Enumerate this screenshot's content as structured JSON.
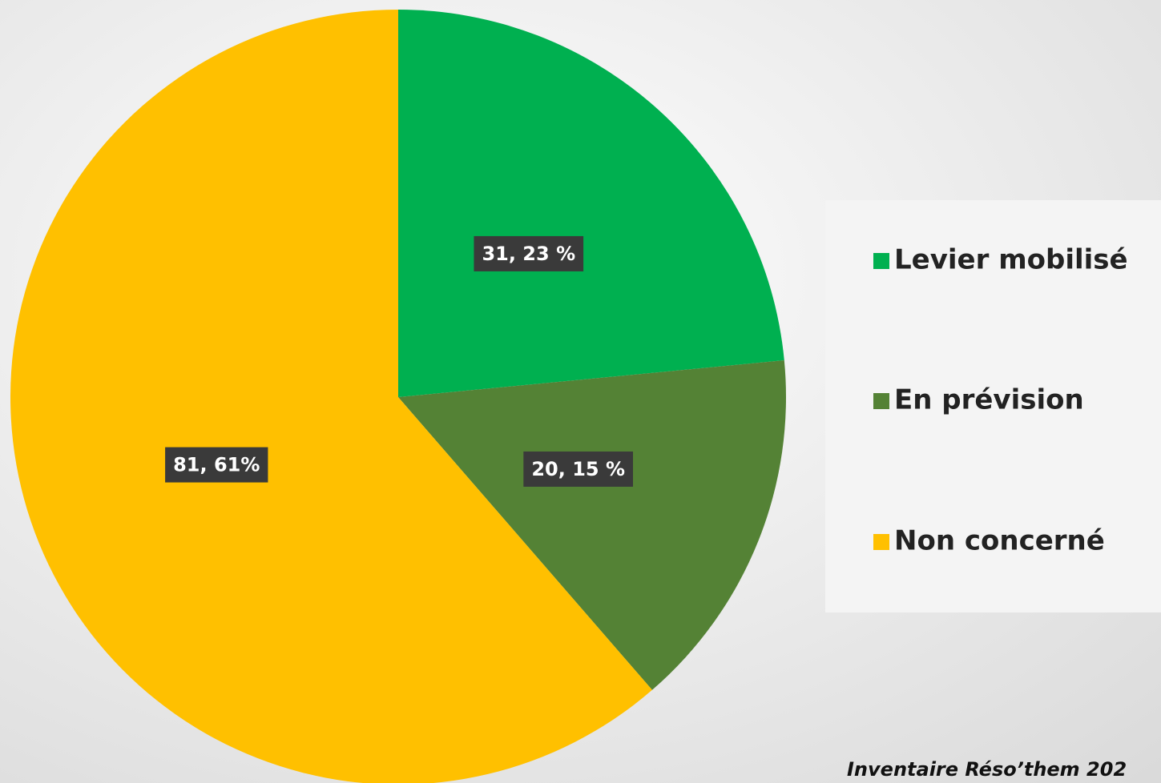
{
  "chart_data": {
    "type": "pie",
    "categories": [
      "Levier mobilisé",
      "En prévision",
      "Non concerné"
    ],
    "values": [
      31,
      20,
      81
    ],
    "value_labels": [
      "31, 23 %",
      "20, 15 %",
      "81, 61%"
    ],
    "colors": [
      "#00b050",
      "#548235",
      "#ffc000"
    ],
    "legend": "right",
    "source": "Inventaire Réso’them 202"
  }
}
